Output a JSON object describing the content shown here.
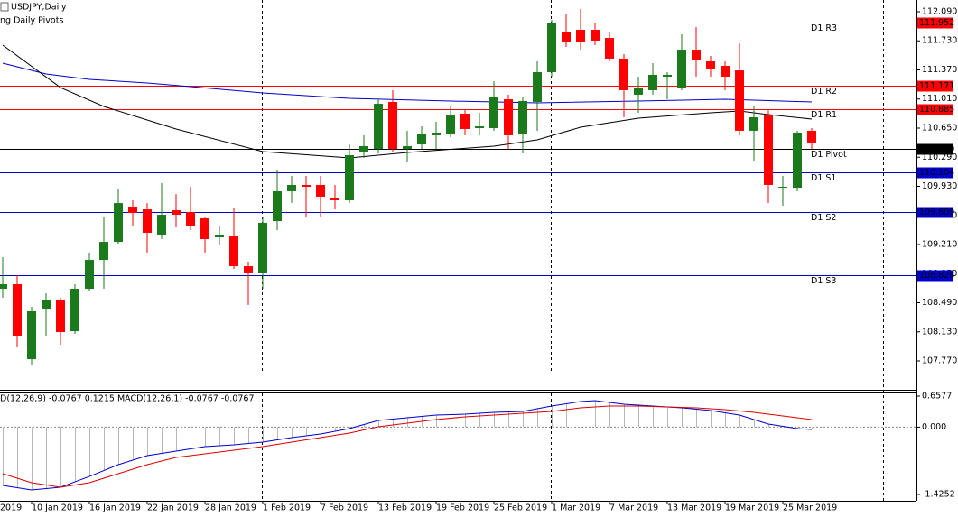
{
  "chart_data": {
    "type": "candlestick",
    "title": "USDJPY,Daily",
    "subtitle": "ng Daily Pivots",
    "clipped_label": "2019",
    "categories": [
      null,
      null,
      "10 Jan 2019",
      null,
      null,
      null,
      "16 Jan 2019",
      null,
      null,
      null,
      "22 Jan 2019",
      null,
      null,
      null,
      "28 Jan 2019",
      null,
      null,
      null,
      "1 Feb 2019",
      null,
      null,
      null,
      "7 Feb 2019",
      null,
      null,
      null,
      "13 Feb 2019",
      null,
      null,
      null,
      "19 Feb 2019",
      null,
      null,
      null,
      "25 Feb 2019",
      null,
      null,
      null,
      "1 Mar 2019",
      null,
      null,
      null,
      "7 Mar 2019",
      null,
      null,
      null,
      "13 Mar 2019",
      null,
      null,
      null,
      "19 Mar 2019",
      null,
      null,
      null,
      "25 Mar 2019",
      null,
      null
    ],
    "open": [
      108.663,
      108.719,
      107.792,
      108.406,
      108.518,
      108.138,
      108.663,
      109.02,
      109.243,
      109.679,
      109.645,
      109.333,
      109.634,
      109.612,
      109.534,
      109.299,
      109.31,
      108.942,
      108.853,
      109.5,
      109.869,
      109.947,
      109.947,
      109.779,
      109.757,
      110.36,
      110.393,
      110.974,
      110.393,
      110.449,
      110.561,
      110.583,
      110.829,
      110.65,
      110.65,
      111.007,
      110.583,
      110.974,
      111.342,
      111.833,
      111.867,
      111.867,
      111.766,
      111.51,
      111.063,
      111.119,
      111.286,
      111.152,
      111.621,
      111.476,
      111.42,
      111.364,
      110.617,
      110.806,
      109.913,
      109.913,
      110.617
    ],
    "high": [
      109.054,
      108.83,
      108.44,
      108.607,
      108.551,
      108.719,
      109.11,
      109.556,
      109.891,
      109.757,
      109.723,
      109.969,
      109.835,
      109.924,
      109.556,
      109.444,
      109.667,
      108.998,
      109.556,
      110.137,
      110.058,
      110.058,
      110.058,
      109.947,
      110.449,
      110.561,
      111.007,
      111.119,
      110.617,
      110.672,
      110.728,
      110.918,
      110.873,
      110.84,
      111.23,
      111.063,
      111.03,
      111.476,
      111.99,
      112.068,
      112.123,
      111.956,
      111.844,
      111.565,
      111.286,
      111.454,
      111.342,
      111.811,
      111.9,
      111.543,
      111.476,
      111.699,
      110.918,
      110.873,
      110.058,
      110.617,
      110.65
    ],
    "low": [
      108.551,
      107.937,
      107.714,
      108.083,
      107.971,
      108.105,
      108.641,
      108.663,
      109.221,
      109.444,
      109.11,
      109.277,
      109.422,
      109.388,
      109.11,
      109.199,
      108.909,
      108.462,
      108.663,
      109.388,
      109.723,
      109.556,
      109.556,
      109.645,
      109.723,
      110.282,
      110.337,
      110.36,
      110.226,
      110.393,
      110.393,
      110.538,
      110.561,
      110.561,
      110.617,
      110.393,
      110.337,
      110.617,
      111.286,
      111.655,
      111.621,
      111.677,
      111.476,
      110.784,
      110.84,
      111.063,
      111.007,
      111.119,
      111.286,
      111.286,
      111.119,
      110.561,
      110.248,
      109.723,
      109.69,
      109.869,
      110.393
    ],
    "close": [
      108.719,
      108.083,
      108.384,
      108.518,
      108.127,
      108.663,
      109.02,
      109.243,
      109.723,
      109.6,
      109.355,
      109.578,
      109.578,
      109.444,
      109.277,
      109.333,
      108.942,
      108.853,
      109.478,
      109.869,
      109.947,
      109.924,
      109.802,
      109.757,
      110.315,
      110.427,
      110.951,
      110.393,
      110.427,
      110.583,
      110.594,
      110.806,
      110.639,
      110.672,
      111.03,
      110.561,
      110.985,
      111.342,
      111.956,
      111.71,
      111.71,
      111.733,
      111.51,
      111.119,
      111.152,
      111.309,
      111.309,
      111.621,
      111.487,
      111.376,
      111.286,
      110.617,
      110.784,
      109.947,
      109.924,
      110.594,
      110.471
    ],
    "up_color": "#1b7a1b",
    "down_color": "#ff0000",
    "ylim": [
      107.413,
      112.235
    ],
    "yticks": [
      {
        "value": 112.09,
        "label": "112.090"
      },
      {
        "value": 111.73,
        "label": "111.730"
      },
      {
        "value": 111.37,
        "label": "111.370"
      },
      {
        "value": 111.01,
        "label": "111.010"
      },
      {
        "value": 110.65,
        "label": "110.650"
      },
      {
        "value": 110.29,
        "label": "110.290"
      },
      {
        "value": 109.93,
        "label": "109.930"
      },
      {
        "value": 109.57,
        "label": "109.570"
      },
      {
        "value": 109.21,
        "label": "109.210"
      },
      {
        "value": 108.85,
        "label": "108.850"
      },
      {
        "value": 108.49,
        "label": "108.490"
      },
      {
        "value": 108.13,
        "label": "108.130"
      },
      {
        "value": 107.77,
        "label": "107.770"
      }
    ],
    "moving_averages": [
      {
        "color": "#0000cc",
        "indices": [
          0,
          3,
          6,
          10,
          13,
          18,
          24,
          31,
          37,
          44,
          50,
          56
        ],
        "values": [
          111.454,
          111.32,
          111.253,
          111.208,
          111.163,
          111.085,
          111.018,
          110.985,
          110.963,
          110.985,
          111.007,
          110.974
        ]
      },
      {
        "color": "#000000",
        "indices": [
          0,
          4,
          7,
          12,
          18,
          24,
          28,
          34,
          37,
          40,
          44,
          49,
          51,
          53,
          56
        ],
        "values": [
          111.677,
          111.152,
          110.918,
          110.639,
          110.36,
          110.282,
          110.349,
          110.427,
          110.505,
          110.661,
          110.773,
          110.84,
          110.862,
          110.817,
          110.762
        ]
      }
    ],
    "pivots": [
      {
        "name": "D1 R3",
        "level": 111.952,
        "color": "#ff0000"
      },
      {
        "name": "D1 R2",
        "level": 111.171,
        "color": "#ff0000"
      },
      {
        "name": "D1 R1",
        "level": 110.885,
        "color": "#ff0000"
      },
      {
        "name": "D1 Pivot",
        "level": {
          "value": 110.39,
          "label": "110.390"
        },
        "color": "#000000"
      },
      {
        "name": "D1 S1",
        "level": 110.104,
        "color": "#0000cc"
      },
      {
        "name": "D1 S2",
        "level": 109.609,
        "color": "#0000cc"
      },
      {
        "name": "D1 S3",
        "level": 108.828,
        "color": "#0000cc"
      }
    ],
    "macd": {
      "label": "D(12,26,9) -0.0767 0.1215 MACD(12,26,1) -0.0767 -0.0767",
      "ylim": [
        -1.483,
        0.715
      ],
      "yticks": [
        0.6577,
        {
          "value": 0,
          "label": "0.000"
        },
        -1.4252
      ],
      "histogram": {
        "color": "#b8b8b8",
        "values": [
          -1.234,
          -1.28,
          -1.33,
          -1.3,
          -1.273,
          -1.16,
          -1.044,
          -0.92,
          -0.795,
          -0.7,
          -0.604,
          -0.556,
          -0.508,
          -0.46,
          -0.413,
          -0.394,
          -0.375,
          -0.346,
          -0.317,
          -0.27,
          -0.222,
          -0.184,
          -0.146,
          -0.088,
          -0.031,
          0.055,
          0.142,
          0.17,
          0.199,
          0.228,
          0.256,
          0.265,
          0.275,
          0.294,
          0.314,
          0.323,
          0.333,
          0.39,
          0.447,
          0.495,
          0.543,
          0.562,
          0.524,
          0.486,
          0.466,
          0.447,
          0.428,
          0.409,
          0.38,
          0.352,
          0.304,
          0.256,
          0.16,
          0.065,
          0.017,
          -0.031,
          -0.05
        ]
      },
      "lines": [
        {
          "color": "#0000cc",
          "indices": [
            0,
            2,
            4,
            6,
            8,
            10,
            12,
            14,
            16,
            18,
            20,
            22,
            24,
            26,
            28,
            30,
            32,
            34,
            36,
            38,
            40,
            41,
            43,
            45,
            47,
            49,
            51,
            53,
            55,
            56
          ],
          "values": [
            -1.234,
            -1.33,
            -1.273,
            -1.044,
            -0.795,
            -0.604,
            -0.508,
            -0.413,
            -0.375,
            -0.317,
            -0.222,
            -0.146,
            -0.031,
            0.142,
            0.199,
            0.256,
            0.275,
            0.314,
            0.333,
            0.447,
            0.543,
            0.562,
            0.486,
            0.447,
            0.409,
            0.352,
            0.256,
            0.065,
            -0.031,
            -0.05
          ]
        },
        {
          "color": "#dd0000",
          "indices": [
            0,
            2,
            4,
            6,
            8,
            10,
            12,
            14,
            16,
            18,
            20,
            22,
            24,
            26,
            28,
            30,
            32,
            34,
            36,
            38,
            40,
            42,
            44,
            46,
            48,
            50,
            52,
            54,
            56
          ],
          "values": [
            -0.986,
            -1.177,
            -1.273,
            -1.177,
            -0.986,
            -0.795,
            -0.642,
            -0.566,
            -0.489,
            -0.413,
            -0.317,
            -0.222,
            -0.126,
            0.008,
            0.084,
            0.161,
            0.218,
            0.256,
            0.294,
            0.333,
            0.409,
            0.447,
            0.447,
            0.428,
            0.409,
            0.371,
            0.314,
            0.237,
            0.161
          ]
        }
      ]
    }
  }
}
